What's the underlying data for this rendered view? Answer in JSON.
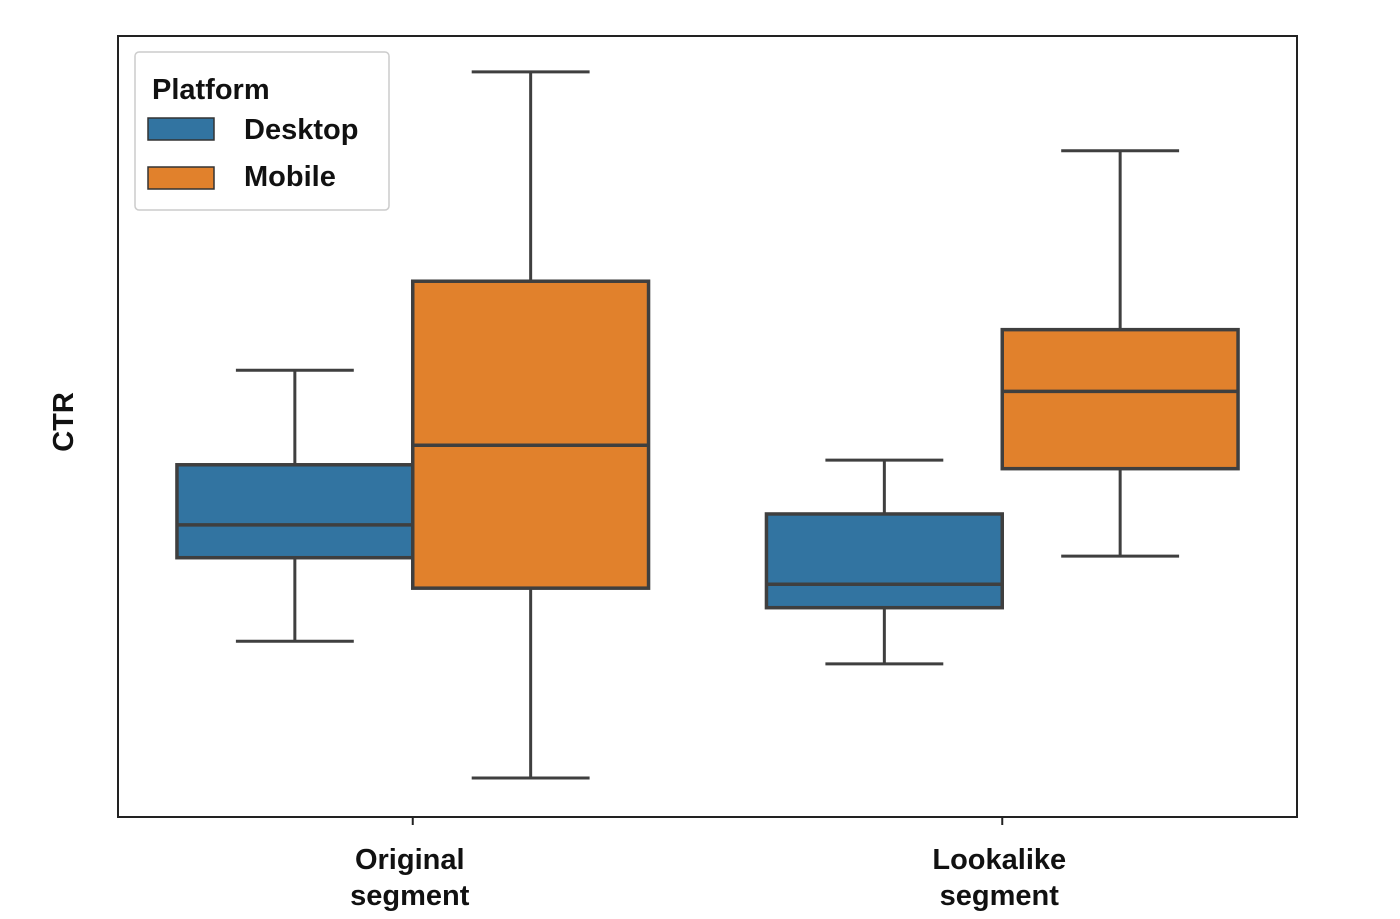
{
  "chart_data": {
    "type": "box",
    "title": "",
    "xlabel": "",
    "ylabel": "CTR",
    "y_ticks_shown": false,
    "ylim": [
      0,
      100
    ],
    "grid": false,
    "legend": {
      "title": "Platform",
      "placement": "top-left",
      "entries": [
        {
          "name": "Desktop",
          "color": "#3274A1"
        },
        {
          "name": "Mobile",
          "color": "#E1812C"
        }
      ]
    },
    "categories": [
      {
        "line1": "Original",
        "line2": "segment"
      },
      {
        "line1": "Lookalike",
        "line2": "segment"
      }
    ],
    "series": [
      {
        "name": "Desktop",
        "color": "#3274A1",
        "boxes": [
          {
            "whisker_low": 22.5,
            "q1": 33.2,
            "median": 37.4,
            "q3": 45.1,
            "whisker_high": 57.2
          },
          {
            "whisker_low": 19.6,
            "q1": 26.8,
            "median": 29.8,
            "q3": 38.8,
            "whisker_high": 45.7
          }
        ]
      },
      {
        "name": "Mobile",
        "color": "#E1812C",
        "boxes": [
          {
            "whisker_low": 5.0,
            "q1": 29.3,
            "median": 47.6,
            "q3": 68.6,
            "whisker_high": 95.4
          },
          {
            "whisker_low": 33.4,
            "q1": 44.6,
            "median": 54.5,
            "q3": 62.4,
            "whisker_high": 85.3
          }
        ]
      }
    ]
  }
}
